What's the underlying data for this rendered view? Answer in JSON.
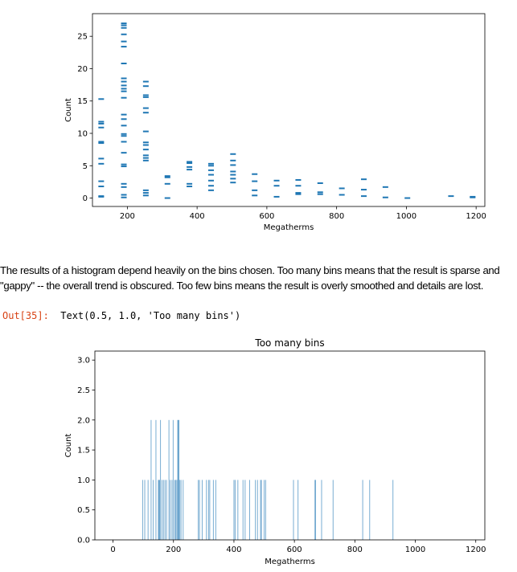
{
  "notebook": {
    "paragraph": [
      "The results of a histogram depend heavily on the bins chosen. Too many bins means that the result is sparse and",
      "\"gappy\" -- the overall trend is obscured. Too few bins means the result is overly smoothed and details are lost."
    ],
    "out_label": "Out[35]:",
    "out_text": "Text(0.5, 1.0, 'Too many bins')"
  },
  "colors": {
    "series": "#1f77b4",
    "out_label": "#d84315"
  },
  "chart_data": [
    {
      "type": "scatter",
      "title": "",
      "xlabel": "Megatherms",
      "ylabel": "Count",
      "xlim": [
        100,
        1225
      ],
      "ylim": [
        -1.3,
        28.5
      ],
      "xticks": [
        200,
        400,
        600,
        800,
        1000,
        1200
      ],
      "yticks": [
        0,
        5,
        10,
        15,
        20,
        25
      ],
      "marker": "short horizontal dash",
      "points": [
        [
          125,
          0.2
        ],
        [
          125,
          0.3
        ],
        [
          125,
          1.8
        ],
        [
          125,
          2.6
        ],
        [
          125,
          5.3
        ],
        [
          125,
          6.1
        ],
        [
          125,
          8.5
        ],
        [
          125,
          8.7
        ],
        [
          125,
          10.9
        ],
        [
          125,
          11.5
        ],
        [
          125,
          11.8
        ],
        [
          125,
          15.3
        ],
        [
          190,
          0.1
        ],
        [
          190,
          0.5
        ],
        [
          190,
          1.7
        ],
        [
          190,
          2.2
        ],
        [
          190,
          4.9
        ],
        [
          190,
          5.2
        ],
        [
          190,
          7.0
        ],
        [
          190,
          8.7
        ],
        [
          190,
          9.6
        ],
        [
          190,
          9.9
        ],
        [
          190,
          11.2
        ],
        [
          190,
          12.2
        ],
        [
          190,
          12.9
        ],
        [
          190,
          15.5
        ],
        [
          190,
          16.5
        ],
        [
          190,
          16.9
        ],
        [
          190,
          17.4
        ],
        [
          190,
          18.0
        ],
        [
          190,
          18.5
        ],
        [
          190,
          20.8
        ],
        [
          190,
          23.4
        ],
        [
          190,
          24.2
        ],
        [
          190,
          25.3
        ],
        [
          190,
          26.3
        ],
        [
          190,
          26.7
        ],
        [
          190,
          27.0
        ],
        [
          253,
          0.4
        ],
        [
          253,
          0.8
        ],
        [
          253,
          1.2
        ],
        [
          253,
          5.8
        ],
        [
          253,
          6.2
        ],
        [
          253,
          6.6
        ],
        [
          253,
          7.5
        ],
        [
          253,
          8.2
        ],
        [
          253,
          8.6
        ],
        [
          253,
          10.3
        ],
        [
          253,
          13.2
        ],
        [
          253,
          13.9
        ],
        [
          253,
          15.6
        ],
        [
          253,
          15.9
        ],
        [
          253,
          17.3
        ],
        [
          253,
          18.0
        ],
        [
          315,
          0.0
        ],
        [
          315,
          2.2
        ],
        [
          315,
          3.2
        ],
        [
          315,
          3.4
        ],
        [
          378,
          1.8
        ],
        [
          378,
          2.2
        ],
        [
          378,
          4.4
        ],
        [
          378,
          4.8
        ],
        [
          378,
          5.4
        ],
        [
          378,
          5.6
        ],
        [
          440,
          1.2
        ],
        [
          440,
          1.9
        ],
        [
          440,
          2.7
        ],
        [
          440,
          3.6
        ],
        [
          440,
          4.3
        ],
        [
          440,
          5.0
        ],
        [
          440,
          5.3
        ],
        [
          503,
          2.4
        ],
        [
          503,
          3.0
        ],
        [
          503,
          3.6
        ],
        [
          503,
          4.1
        ],
        [
          503,
          5.1
        ],
        [
          503,
          5.8
        ],
        [
          503,
          6.8
        ],
        [
          565,
          0.4
        ],
        [
          565,
          1.2
        ],
        [
          565,
          2.6
        ],
        [
          565,
          3.7
        ],
        [
          628,
          0.2
        ],
        [
          628,
          1.9
        ],
        [
          628,
          2.7
        ],
        [
          690,
          0.6
        ],
        [
          690,
          0.8
        ],
        [
          690,
          1.9
        ],
        [
          690,
          2.8
        ],
        [
          753,
          0.6
        ],
        [
          753,
          0.9
        ],
        [
          753,
          2.3
        ],
        [
          815,
          0.5
        ],
        [
          815,
          1.5
        ],
        [
          878,
          0.3
        ],
        [
          878,
          1.3
        ],
        [
          878,
          2.9
        ],
        [
          940,
          0.1
        ],
        [
          940,
          1.7
        ],
        [
          1003,
          0.0
        ],
        [
          1128,
          0.3
        ],
        [
          1190,
          0.1
        ],
        [
          1190,
          0.2
        ]
      ]
    },
    {
      "type": "bar",
      "title": "Too many bins",
      "xlabel": "Megatherms",
      "ylabel": "Count",
      "xlim": [
        -60,
        1230
      ],
      "ylim": [
        0,
        3.15
      ],
      "xticks": [
        0,
        200,
        400,
        600,
        800,
        1000,
        1200
      ],
      "yticks": [
        "0.0",
        "0.5",
        "1.0",
        "1.5",
        "2.0",
        "2.5",
        "3.0"
      ],
      "bars": [
        [
          98,
          1
        ],
        [
          105,
          1
        ],
        [
          116,
          1
        ],
        [
          126,
          2
        ],
        [
          133,
          1
        ],
        [
          142,
          2
        ],
        [
          150,
          1
        ],
        [
          152,
          1
        ],
        [
          154,
          1
        ],
        [
          157,
          2
        ],
        [
          162,
          1
        ],
        [
          167,
          1
        ],
        [
          172,
          1
        ],
        [
          177,
          1
        ],
        [
          185,
          2
        ],
        [
          189,
          1
        ],
        [
          195,
          1
        ],
        [
          199,
          2
        ],
        [
          204,
          1
        ],
        [
          207,
          1
        ],
        [
          211,
          1
        ],
        [
          214,
          2
        ],
        [
          216,
          2
        ],
        [
          218,
          2
        ],
        [
          221,
          1
        ],
        [
          225,
          1
        ],
        [
          232,
          1
        ],
        [
          282,
          1
        ],
        [
          286,
          1
        ],
        [
          295,
          1
        ],
        [
          309,
          1
        ],
        [
          316,
          1
        ],
        [
          320,
          1
        ],
        [
          332,
          1
        ],
        [
          340,
          1
        ],
        [
          400,
          1
        ],
        [
          404,
          1
        ],
        [
          413,
          1
        ],
        [
          430,
          1
        ],
        [
          437,
          1
        ],
        [
          452,
          1
        ],
        [
          471,
          1
        ],
        [
          478,
          1
        ],
        [
          488,
          1
        ],
        [
          491,
          1
        ],
        [
          500,
          1
        ],
        [
          505,
          1
        ],
        [
          597,
          1
        ],
        [
          612,
          1
        ],
        [
          668,
          1
        ],
        [
          670,
          1
        ],
        [
          690,
          1
        ],
        [
          728,
          1
        ],
        [
          826,
          1
        ],
        [
          849,
          1
        ],
        [
          926,
          1
        ]
      ]
    }
  ]
}
